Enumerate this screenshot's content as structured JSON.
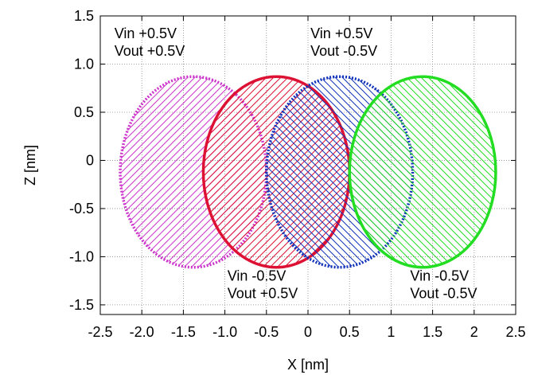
{
  "chart_data": {
    "type": "scatter",
    "title": "",
    "xlabel": "X [nm]",
    "ylabel": "Z [nm]",
    "xlim": [
      -2.5,
      2.5
    ],
    "ylim": [
      -1.6,
      1.5
    ],
    "xticks": [
      -2.5,
      -2.0,
      -1.5,
      -1.0,
      -0.5,
      0,
      0.5,
      1,
      1.5,
      2,
      2.5
    ],
    "xtick_labels": [
      "-2.5",
      "-2.0",
      "-1.5",
      "-1.0",
      "-0.5",
      "0",
      "0.5",
      "1",
      "1.5",
      "2",
      "2.5"
    ],
    "yticks": [
      -1.5,
      -1.0,
      -0.5,
      0,
      0.5,
      1.0,
      1.5
    ],
    "ytick_labels": [
      "-1.5",
      "-1.0",
      "-0.5",
      "0",
      "0.5",
      "1.0",
      "1.5"
    ],
    "grid": true,
    "series": [
      {
        "color": "#cc33cc",
        "line_style": "dotted",
        "hatch": "diagonal",
        "center": [
          -1.38,
          -0.12
        ],
        "radius_x": 0.88,
        "radius_y": 0.99,
        "annotation": [
          "Vin +0.5V",
          "Vout +0.5V"
        ],
        "annotation_anchor": [
          -2.33,
          1.27
        ]
      },
      {
        "color": "#dd1133",
        "line_style": "solid",
        "hatch": "diagonal",
        "center": [
          -0.38,
          -0.12
        ],
        "radius_x": 0.88,
        "radius_y": 0.99,
        "annotation": [
          "Vin -0.5V",
          "Vout +0.5V"
        ],
        "annotation_anchor": [
          -0.97,
          -1.25
        ]
      },
      {
        "color": "#1133bb",
        "line_style": "dotted",
        "hatch": "anti-diagonal",
        "center": [
          0.38,
          -0.12
        ],
        "radius_x": 0.88,
        "radius_y": 0.99,
        "annotation": [
          "Vin +0.5V",
          "Vout -0.5V"
        ],
        "annotation_anchor": [
          0.03,
          1.27
        ]
      },
      {
        "color": "#22dd22",
        "line_style": "solid",
        "hatch": "anti-diagonal",
        "center": [
          1.38,
          -0.12
        ],
        "radius_x": 0.88,
        "radius_y": 0.99,
        "annotation": [
          "Vin -0.5V",
          "Vout -0.5V"
        ],
        "annotation_anchor": [
          1.23,
          -1.25
        ]
      }
    ]
  }
}
